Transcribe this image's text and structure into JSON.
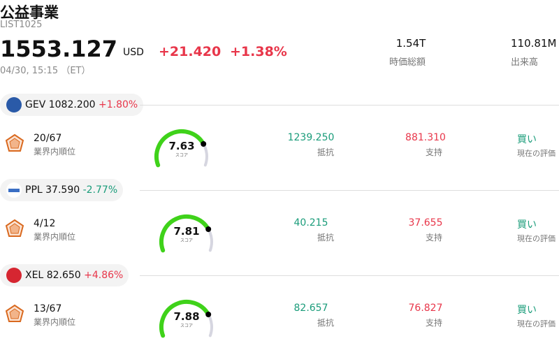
{
  "header": {
    "title": "公益事業",
    "code": "LIST1025",
    "price": "1553.127",
    "currency": "USD",
    "change": "+21.420",
    "change_pct": "+1.38%",
    "time": "04/30, 15:15 （ET）",
    "market_cap": "1.54T",
    "market_cap_label": "時価総額",
    "volume": "110.81M",
    "volume_label": "出来高"
  },
  "stocks": [
    {
      "ticker": "GEV",
      "price": "1082.200",
      "change": "+1.80%",
      "direction": "up",
      "rank": "20/67",
      "rank_label": "業界内順位",
      "score": "7.63",
      "score_label": "スコア",
      "resistance": "1239.250",
      "resistance_label": "抵抗",
      "support": "881.310",
      "support_label": "支持",
      "rating": "買い",
      "rating_label": "現在の評価"
    },
    {
      "ticker": "PPL",
      "price": "37.590",
      "change": "-2.77%",
      "direction": "down",
      "rank": "4/12",
      "rank_label": "業界内順位",
      "score": "7.81",
      "score_label": "スコア",
      "resistance": "40.215",
      "resistance_label": "抵抗",
      "support": "37.655",
      "support_label": "支持",
      "rating": "買い",
      "rating_label": "現在の評価"
    },
    {
      "ticker": "XEL",
      "price": "82.650",
      "change": "+4.86%",
      "direction": "up",
      "rank": "13/67",
      "rank_label": "業界内順位",
      "score": "7.88",
      "score_label": "スコア",
      "resistance": "82.657",
      "resistance_label": "抵抗",
      "support": "76.827",
      "support_label": "支持",
      "rating": "買い",
      "rating_label": "現在の評価"
    }
  ]
}
